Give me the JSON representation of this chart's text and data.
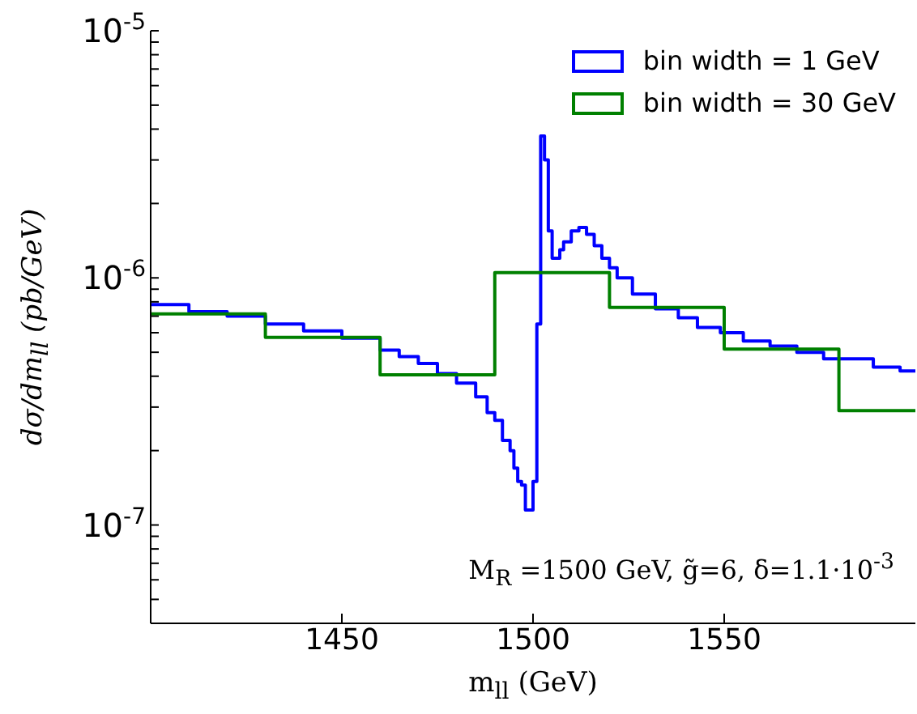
{
  "chart_data": {
    "type": "step",
    "xlabel": "m$_{ll}$ (GeV)",
    "ylabel": "dσ/dm$_{ll}$ (pb/GeV)",
    "annotations": [
      "M$_{R}$ =1500 GeV, g̃=6, δ=1.1·10$^{-3}$"
    ],
    "xlim": [
      1400,
      1600
    ],
    "xticks": [
      1450,
      1500,
      1550
    ],
    "ylim": [
      4e-08,
      1e-05
    ],
    "log": "y",
    "yticks": [
      {
        "value": 5e-08,
        "label": null
      },
      {
        "value": 6e-08,
        "label": null
      },
      {
        "value": 7e-08,
        "label": null
      },
      {
        "value": 8e-08,
        "label": null
      },
      {
        "value": 9e-08,
        "label": null
      },
      {
        "value": 1e-07,
        "label": "10$^{-7}$"
      },
      {
        "value": 2e-07,
        "label": null
      },
      {
        "value": 3e-07,
        "label": null
      },
      {
        "value": 4e-07,
        "label": null
      },
      {
        "value": 5e-07,
        "label": null
      },
      {
        "value": 6e-07,
        "label": null
      },
      {
        "value": 7e-07,
        "label": null
      },
      {
        "value": 8e-07,
        "label": null
      },
      {
        "value": 9e-07,
        "label": null
      },
      {
        "value": 1e-06,
        "label": "10$^{-6}$"
      },
      {
        "value": 2e-06,
        "label": null
      },
      {
        "value": 3e-06,
        "label": null
      },
      {
        "value": 4e-06,
        "label": null
      },
      {
        "value": 5e-06,
        "label": null
      },
      {
        "value": 6e-06,
        "label": null
      },
      {
        "value": 7e-06,
        "label": null
      },
      {
        "value": 8e-06,
        "label": null
      },
      {
        "value": 9e-06,
        "label": null
      },
      {
        "value": 1e-05,
        "label": "10$^{-5}$"
      }
    ],
    "legend": "top right",
    "series": [
      {
        "name": "bin width = 1 GeV",
        "color": "#0000ff",
        "x": [
          1400,
          1410,
          1420,
          1430,
          1440,
          1450,
          1460,
          1465,
          1470,
          1475,
          1480,
          1485,
          1488,
          1490,
          1492,
          1494,
          1495,
          1496,
          1497,
          1498,
          1500,
          1501,
          1502,
          1503,
          1504,
          1505,
          1506,
          1507,
          1508,
          1510,
          1512,
          1514,
          1516,
          1518,
          1520,
          1522,
          1526,
          1532,
          1538,
          1543,
          1549,
          1555,
          1562,
          1569,
          1576,
          1582,
          1589,
          1596,
          1600
        ],
        "values": [
          7.8e-07,
          7.3e-07,
          7e-07,
          6.5e-07,
          6.1e-07,
          5.7e-07,
          5.1e-07,
          4.8e-07,
          4.5e-07,
          4.1e-07,
          3.75e-07,
          3.3e-07,
          2.85e-07,
          2.65e-07,
          2.2e-07,
          2e-07,
          1.7e-07,
          1.5e-07,
          1.45e-07,
          1.15e-07,
          1.5e-07,
          6.5e-07,
          3.75e-06,
          3e-06,
          1.55e-06,
          1.2e-06,
          1.2e-06,
          1.3e-06,
          1.4e-06,
          1.55e-06,
          1.6e-06,
          1.5e-06,
          1.35e-06,
          1.2e-06,
          1.1e-06,
          1e-06,
          8.6e-07,
          7.5e-07,
          6.9e-07,
          6.3e-07,
          6e-07,
          5.55e-07,
          5.3e-07,
          5e-07,
          4.7e-07,
          4.7e-07,
          4.35e-07,
          4.2e-07,
          4.15e-07
        ]
      },
      {
        "name": "bin width = 30 GeV",
        "color": "#008000",
        "x": [
          1400,
          1430,
          1460,
          1490,
          1520,
          1550,
          1580,
          1600
        ],
        "values": [
          7.15e-07,
          5.75e-07,
          4.05e-07,
          1.05e-06,
          7.6e-07,
          5.15e-07,
          2.9e-07,
          2.9e-07
        ]
      }
    ]
  }
}
